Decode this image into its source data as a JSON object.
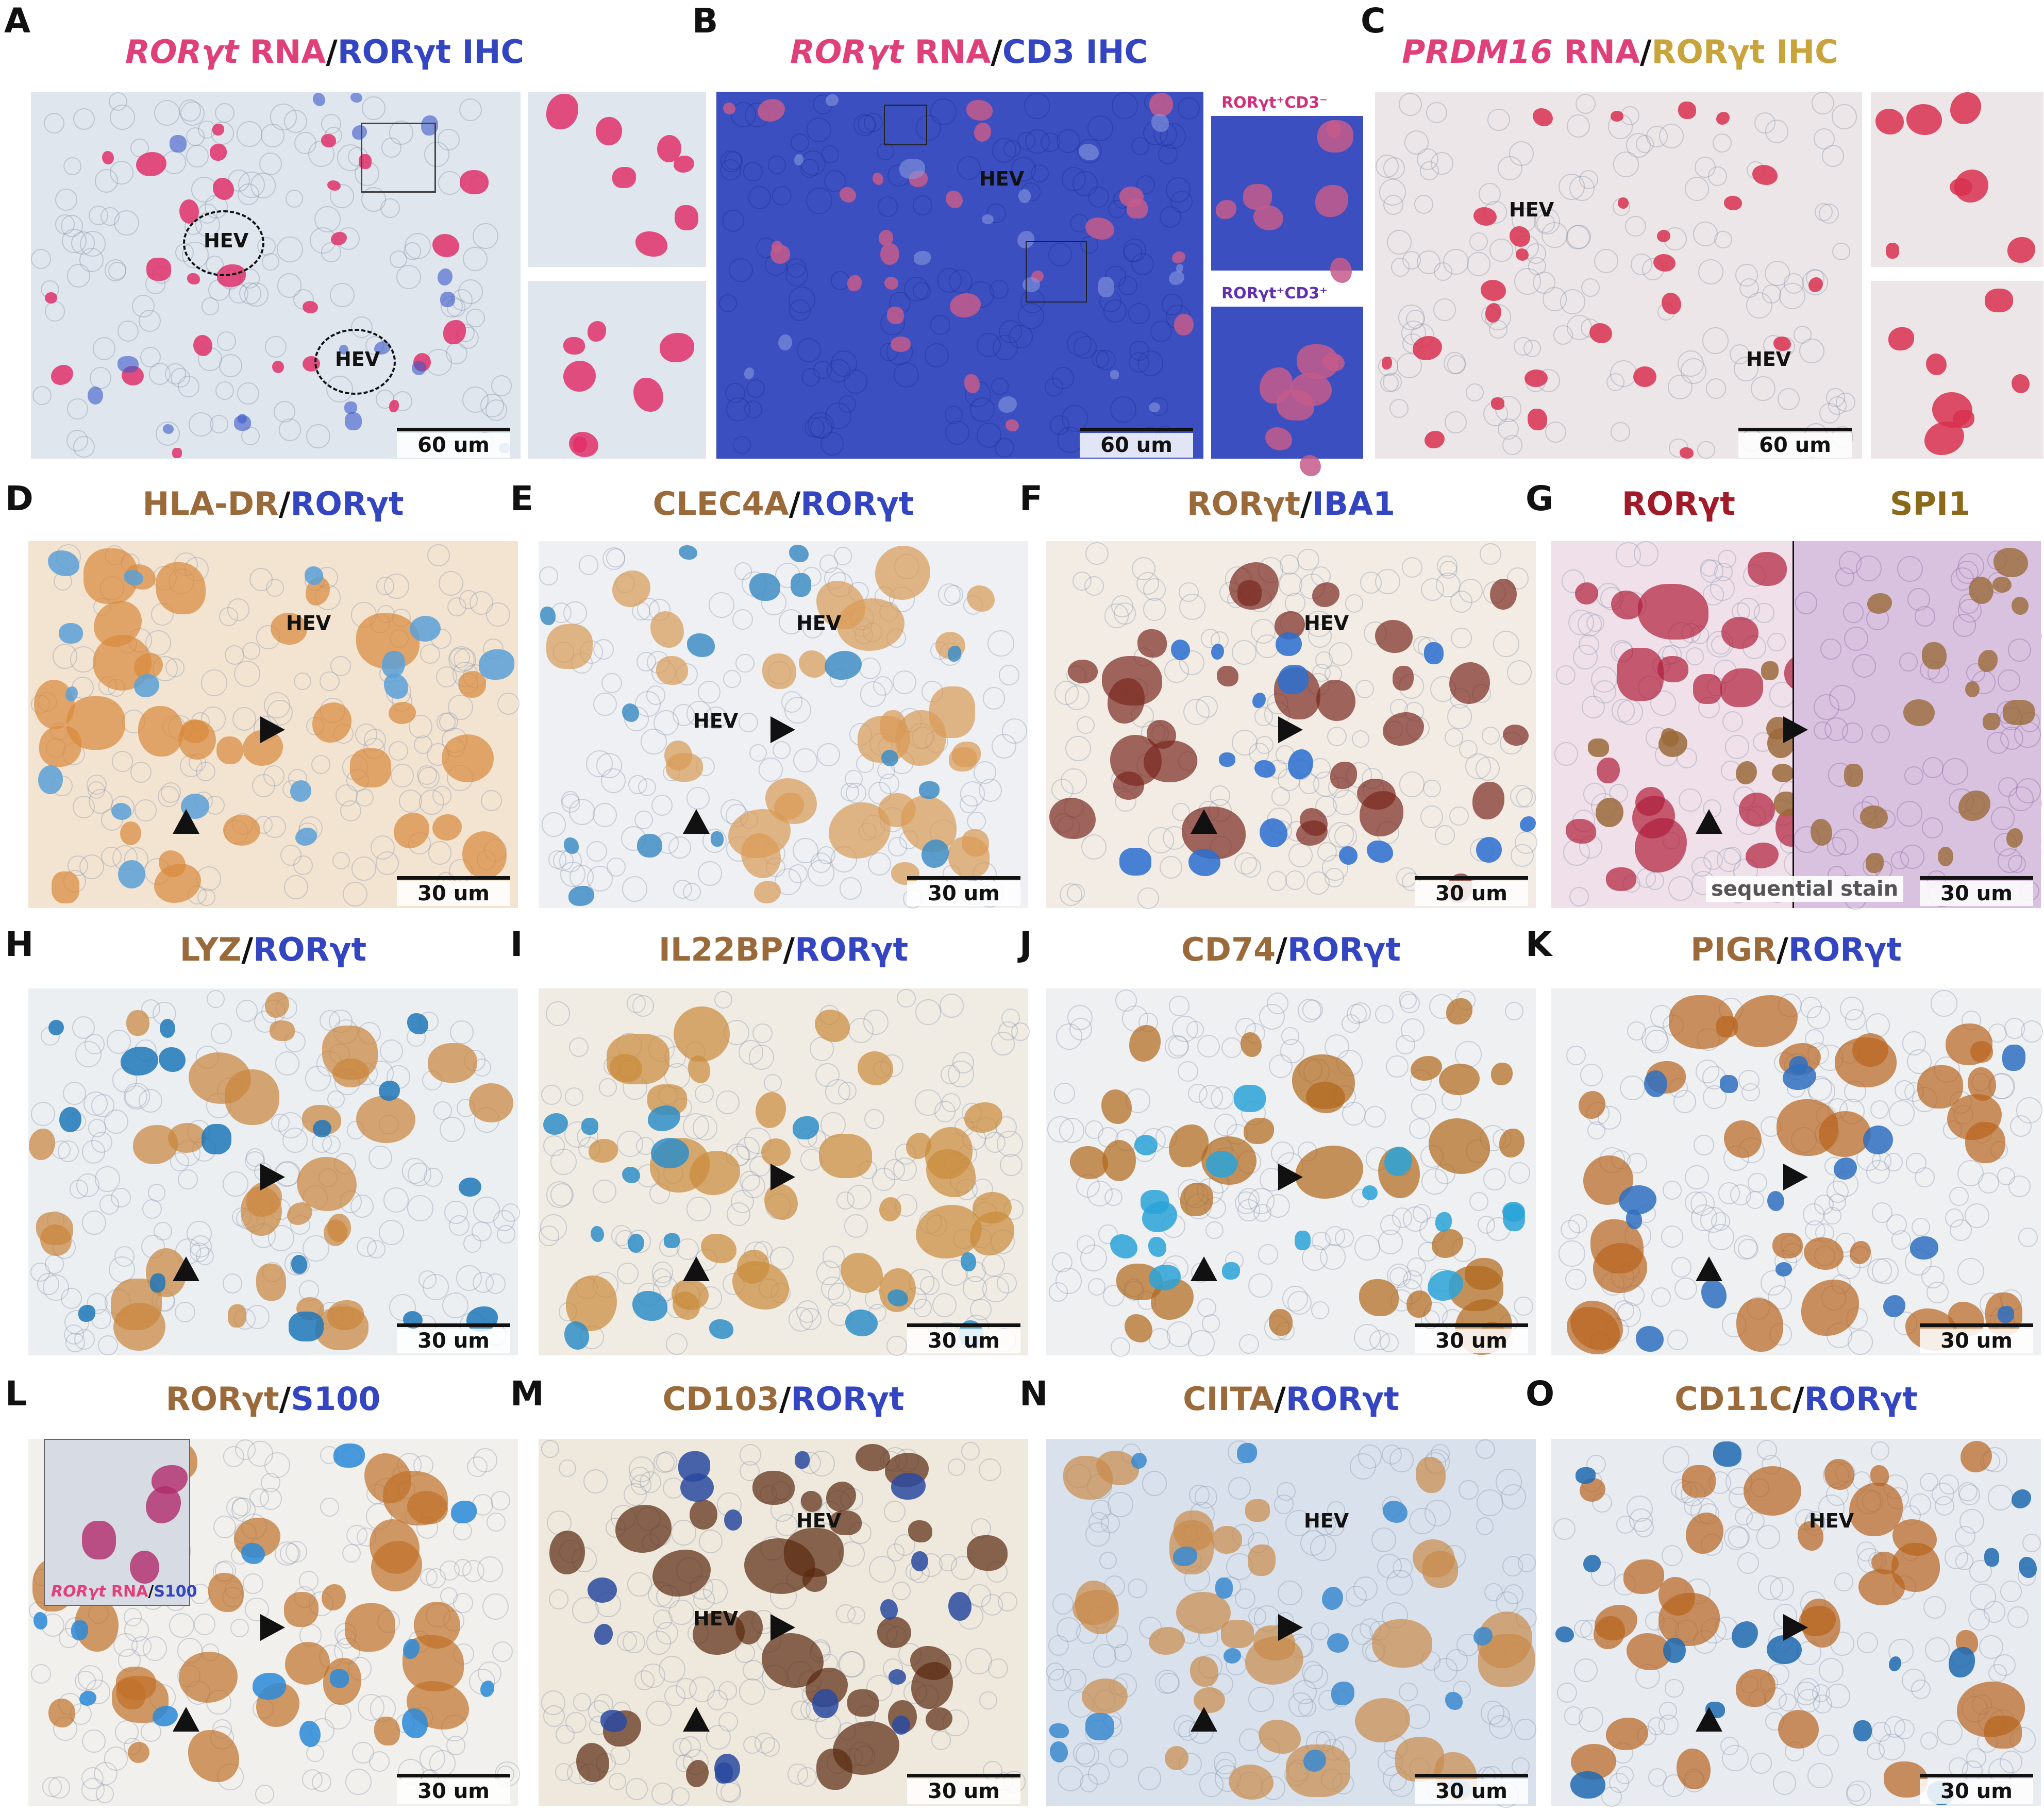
{
  "panels_top": [
    {
      "letter": "A",
      "title": [
        {
          "t": "ROR",
          "c": "pink",
          "i": true
        },
        {
          "t": "γt",
          "c": "pink",
          "i": true
        },
        {
          "t": " RNA",
          "c": "pink"
        },
        {
          "t": "/",
          "c": "dark"
        },
        {
          "t": "RORγt IHC",
          "c": "blue"
        }
      ],
      "scale": "60 um",
      "hev": [
        "HEV",
        "HEV"
      ]
    },
    {
      "letter": "B",
      "title": [
        {
          "t": "RORγt",
          "c": "pink",
          "i": true
        },
        {
          "t": " RNA",
          "c": "pink"
        },
        {
          "t": "/",
          "c": "dark"
        },
        {
          "t": "CD3 IHC",
          "c": "blue"
        }
      ],
      "scale": "60 um",
      "hev": [
        "HEV"
      ],
      "inset1": "RORγt⁺CD3⁻",
      "inset2": "RORγt⁺CD3⁺"
    },
    {
      "letter": "C",
      "title": [
        {
          "t": "PRDM16",
          "c": "pink",
          "i": true
        },
        {
          "t": " RNA",
          "c": "pink"
        },
        {
          "t": "/",
          "c": "dark"
        },
        {
          "t": "RORγt IHC",
          "c": "gold"
        }
      ],
      "scale": "60 um",
      "hev": [
        "HEV",
        "HEV"
      ]
    }
  ],
  "panels": [
    {
      "letter": "D",
      "a": "HLA-DR",
      "ac": "brown",
      "b": "RORγt",
      "bc": "blue",
      "scale": "30 um",
      "hev": [
        "HEV"
      ],
      "bg": "#f3e4d2",
      "c1": "#d9893a",
      "c2": "#5aa0d8"
    },
    {
      "letter": "E",
      "a": "CLEC4A",
      "ac": "brown",
      "b": "RORγt",
      "bc": "blue",
      "scale": "30 um",
      "hev": [
        "HEV",
        "HEV"
      ],
      "bg": "#eef0f3",
      "c1": "#d99a55",
      "c2": "#3f8ec4"
    },
    {
      "letter": "F",
      "a": "RORγt",
      "ac": "brown",
      "b": "IBA1",
      "bc": "blue",
      "scale": "30 um",
      "hev": [
        "HEV"
      ],
      "bg": "#f2ece4",
      "c1": "#7a2a1f",
      "c2": "#2a6ed0"
    },
    {
      "letter": "G",
      "a": "RORγt",
      "ac": "red",
      "b": "SPI1",
      "bc": "olive",
      "scale": "30 um",
      "hev": [],
      "bg": "#efe0ea",
      "c1": "#b01e3a",
      "c2": "#9a6a3a",
      "seq": "sequential stain"
    },
    {
      "letter": "H",
      "a": "LYZ",
      "ac": "brown",
      "b": "RORγt",
      "bc": "blue",
      "scale": "30 um",
      "hev": [],
      "bg": "#eceff2",
      "c1": "#c9843a",
      "c2": "#1f77b8"
    },
    {
      "letter": "I",
      "a": "IL22BP",
      "ac": "brown",
      "b": "RORγt",
      "bc": "blue",
      "scale": "30 um",
      "hev": [],
      "bg": "#f0ece4",
      "c1": "#c98a3a",
      "c2": "#2f8ec8"
    },
    {
      "letter": "J",
      "a": "CD74",
      "ac": "brown",
      "b": "RORγt",
      "bc": "blue",
      "scale": "30 um",
      "hev": [],
      "bg": "#eef0f2",
      "c1": "#b0661a",
      "c2": "#2aa3d8"
    },
    {
      "letter": "K",
      "a": "PIGR",
      "ac": "brown",
      "b": "RORγt",
      "bc": "blue",
      "scale": "30 um",
      "hev": [],
      "bg": "#eef0f2",
      "c1": "#b8641e",
      "c2": "#2f6fc0"
    },
    {
      "letter": "L",
      "a": "RORγt",
      "ac": "brown",
      "b": "S100",
      "bc": "blue",
      "scale": "30 um",
      "hev": [],
      "bg": "#f2f0ec",
      "c1": "#c0702a",
      "c2": "#2a8ad8",
      "inset": [
        {
          "t": "RORγt",
          "c": "pink",
          "i": true
        },
        {
          "t": " RNA",
          "c": "pink"
        },
        {
          "t": "/",
          "c": "dark"
        },
        {
          "t": "S100",
          "c": "blue"
        }
      ]
    },
    {
      "letter": "M",
      "a": "CD103",
      "ac": "brown",
      "b": "RORγt",
      "bc": "blue",
      "scale": "30 um",
      "hev": [
        "HEV",
        "HEV"
      ],
      "bg": "#efe8dc",
      "c1": "#5a2a10",
      "c2": "#2a4aa0"
    },
    {
      "letter": "N",
      "a": "CIITA",
      "ac": "brown",
      "b": "RORγt",
      "bc": "blue",
      "scale": "30 um",
      "hev": [
        "HEV"
      ],
      "bg": "#d9e2ec",
      "c1": "#c98a4a",
      "c2": "#3a8ad0"
    },
    {
      "letter": "O",
      "a": "CD11C",
      "ac": "brown",
      "b": "RORγt",
      "bc": "blue",
      "scale": "30 um",
      "hev": [
        "HEV"
      ],
      "bg": "#e8ecf0",
      "c1": "#b8641e",
      "c2": "#1f6ab0"
    }
  ]
}
